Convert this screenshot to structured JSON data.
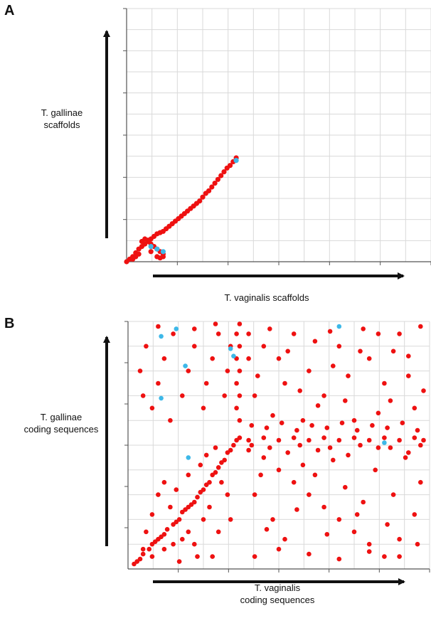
{
  "panels": {
    "a": {
      "letter": "A",
      "ylabel": "T. gallinae\nscaffolds",
      "xlabel": "T. vaginalis scaffolds"
    },
    "b": {
      "letter": "B",
      "ylabel": "T. gallinae\ncoding sequences",
      "xlabel": "T. vaginalis\ncoding sequences"
    }
  },
  "colors": {
    "points": "#ee1111",
    "highlight": "#3db8e8",
    "grid": "#d9d9d9",
    "axis": "#111111"
  },
  "chart_data": [
    {
      "type": "scatter",
      "title": "",
      "xlabel": "T. vaginalis scaffolds",
      "ylabel": "T. gallinae scaffolds",
      "xlim": [
        0,
        1
      ],
      "ylim": [
        0,
        1
      ],
      "grid": true,
      "series": [
        {
          "points": [
            [
              0.0,
              0.0
            ],
            [
              0.01,
              0.01
            ],
            [
              0.02,
              0.02
            ],
            [
              0.03,
              0.035
            ],
            [
              0.04,
              0.05
            ],
            [
              0.05,
              0.06
            ],
            [
              0.06,
              0.07
            ],
            [
              0.07,
              0.08
            ],
            [
              0.08,
              0.09
            ],
            [
              0.09,
              0.1
            ],
            [
              0.1,
              0.11
            ],
            [
              0.11,
              0.115
            ],
            [
              0.12,
              0.12
            ],
            [
              0.13,
              0.13
            ],
            [
              0.14,
              0.14
            ],
            [
              0.15,
              0.15
            ],
            [
              0.16,
              0.16
            ],
            [
              0.17,
              0.17
            ],
            [
              0.18,
              0.18
            ],
            [
              0.19,
              0.19
            ],
            [
              0.2,
              0.2
            ],
            [
              0.21,
              0.21
            ],
            [
              0.22,
              0.22
            ],
            [
              0.23,
              0.23
            ],
            [
              0.24,
              0.24
            ],
            [
              0.25,
              0.255
            ],
            [
              0.26,
              0.27
            ],
            [
              0.27,
              0.28
            ],
            [
              0.28,
              0.295
            ],
            [
              0.29,
              0.31
            ],
            [
              0.3,
              0.325
            ],
            [
              0.31,
              0.34
            ],
            [
              0.32,
              0.355
            ],
            [
              0.33,
              0.37
            ],
            [
              0.34,
              0.38
            ],
            [
              0.35,
              0.395
            ],
            [
              0.36,
              0.41
            ],
            [
              0.05,
              0.08
            ],
            [
              0.06,
              0.09
            ],
            [
              0.07,
              0.085
            ],
            [
              0.08,
              0.07
            ],
            [
              0.09,
              0.06
            ],
            [
              0.1,
              0.05
            ],
            [
              0.11,
              0.04
            ],
            [
              0.12,
              0.03
            ],
            [
              0.12,
              0.02
            ],
            [
              0.11,
              0.015
            ],
            [
              0.03,
              0.02
            ],
            [
              0.04,
              0.03
            ],
            [
              0.02,
              0.01
            ],
            [
              0.08,
              0.04
            ],
            [
              0.1,
              0.02
            ]
          ]
        },
        {
          "points": [
            [
              0.36,
              0.4
            ],
            [
              0.08,
              0.06
            ],
            [
              0.1,
              0.05
            ],
            [
              0.12,
              0.04
            ]
          ]
        }
      ]
    },
    {
      "type": "scatter",
      "title": "",
      "xlabel": "T. vaginalis coding sequences",
      "ylabel": "T. gallinae coding sequences",
      "xlim": [
        0,
        1
      ],
      "ylim": [
        0,
        1
      ],
      "grid": true,
      "series": [
        {
          "points": [
            [
              0.02,
              0.02
            ],
            [
              0.04,
              0.04
            ],
            [
              0.05,
              0.06
            ],
            [
              0.07,
              0.08
            ],
            [
              0.08,
              0.1
            ],
            [
              0.1,
              0.12
            ],
            [
              0.12,
              0.14
            ],
            [
              0.13,
              0.16
            ],
            [
              0.15,
              0.18
            ],
            [
              0.17,
              0.2
            ],
            [
              0.18,
              0.23
            ],
            [
              0.2,
              0.25
            ],
            [
              0.22,
              0.27
            ],
            [
              0.23,
              0.29
            ],
            [
              0.25,
              0.32
            ],
            [
              0.27,
              0.35
            ],
            [
              0.28,
              0.38
            ],
            [
              0.3,
              0.41
            ],
            [
              0.32,
              0.44
            ],
            [
              0.33,
              0.47
            ],
            [
              0.35,
              0.5
            ],
            [
              0.36,
              0.52
            ],
            [
              0.37,
              0.53
            ],
            [
              0.05,
              0.08
            ],
            [
              0.06,
              0.15
            ],
            [
              0.08,
              0.22
            ],
            [
              0.1,
              0.3
            ],
            [
              0.12,
              0.35
            ],
            [
              0.14,
              0.25
            ],
            [
              0.16,
              0.32
            ],
            [
              0.2,
              0.38
            ],
            [
              0.24,
              0.42
            ],
            [
              0.26,
              0.46
            ],
            [
              0.29,
              0.49
            ],
            [
              0.31,
              0.35
            ],
            [
              0.33,
              0.3
            ],
            [
              0.15,
              0.1
            ],
            [
              0.2,
              0.15
            ],
            [
              0.25,
              0.2
            ],
            [
              0.4,
              0.52
            ],
            [
              0.45,
              0.53
            ],
            [
              0.5,
              0.52
            ],
            [
              0.55,
              0.53
            ],
            [
              0.6,
              0.52
            ],
            [
              0.65,
              0.53
            ],
            [
              0.7,
              0.52
            ],
            [
              0.75,
              0.53
            ],
            [
              0.8,
              0.52
            ],
            [
              0.85,
              0.53
            ],
            [
              0.9,
              0.52
            ],
            [
              0.95,
              0.53
            ],
            [
              0.98,
              0.52
            ],
            [
              0.37,
              0.6
            ],
            [
              0.36,
              0.65
            ],
            [
              0.37,
              0.7
            ],
            [
              0.36,
              0.75
            ],
            [
              0.37,
              0.8
            ],
            [
              0.36,
              0.85
            ],
            [
              0.37,
              0.9
            ],
            [
              0.36,
              0.95
            ],
            [
              0.37,
              0.99
            ],
            [
              0.34,
              0.9
            ],
            [
              0.33,
              0.8
            ],
            [
              0.32,
              0.7
            ],
            [
              0.3,
              0.95
            ],
            [
              0.28,
              0.85
            ],
            [
              0.26,
              0.75
            ],
            [
              0.25,
              0.65
            ],
            [
              0.22,
              0.9
            ],
            [
              0.2,
              0.8
            ],
            [
              0.18,
              0.7
            ],
            [
              0.15,
              0.95
            ],
            [
              0.12,
              0.85
            ],
            [
              0.1,
              0.75
            ],
            [
              0.08,
              0.65
            ],
            [
              0.06,
              0.9
            ],
            [
              0.04,
              0.8
            ],
            [
              0.05,
              0.7
            ],
            [
              0.14,
              0.6
            ],
            [
              0.1,
              0.98
            ],
            [
              0.22,
              0.97
            ],
            [
              0.29,
              0.99
            ],
            [
              0.45,
              0.9
            ],
            [
              0.5,
              0.85
            ],
            [
              0.55,
              0.95
            ],
            [
              0.6,
              0.8
            ],
            [
              0.65,
              0.7
            ],
            [
              0.7,
              0.9
            ],
            [
              0.75,
              0.6
            ],
            [
              0.8,
              0.85
            ],
            [
              0.85,
              0.75
            ],
            [
              0.9,
              0.95
            ],
            [
              0.95,
              0.65
            ],
            [
              0.42,
              0.7
            ],
            [
              0.48,
              0.62
            ],
            [
              0.52,
              0.75
            ],
            [
              0.58,
              0.6
            ],
            [
              0.62,
              0.92
            ],
            [
              0.68,
              0.82
            ],
            [
              0.72,
              0.68
            ],
            [
              0.78,
              0.97
            ],
            [
              0.83,
              0.63
            ],
            [
              0.88,
              0.88
            ],
            [
              0.93,
              0.78
            ],
            [
              0.97,
              0.98
            ],
            [
              0.45,
              0.45
            ],
            [
              0.5,
              0.4
            ],
            [
              0.55,
              0.35
            ],
            [
              0.6,
              0.3
            ],
            [
              0.65,
              0.25
            ],
            [
              0.7,
              0.2
            ],
            [
              0.75,
              0.15
            ],
            [
              0.8,
              0.1
            ],
            [
              0.85,
              0.05
            ],
            [
              0.9,
              0.12
            ],
            [
              0.95,
              0.22
            ],
            [
              0.42,
              0.3
            ],
            [
              0.48,
              0.2
            ],
            [
              0.52,
              0.12
            ],
            [
              0.58,
              0.42
            ],
            [
              0.62,
              0.38
            ],
            [
              0.68,
              0.44
            ],
            [
              0.72,
              0.33
            ],
            [
              0.78,
              0.27
            ],
            [
              0.82,
              0.4
            ],
            [
              0.88,
              0.3
            ],
            [
              0.92,
              0.45
            ],
            [
              0.97,
              0.35
            ],
            [
              0.42,
              0.05
            ],
            [
              0.5,
              0.08
            ],
            [
              0.6,
              0.06
            ],
            [
              0.7,
              0.04
            ],
            [
              0.8,
              0.07
            ],
            [
              0.9,
              0.05
            ],
            [
              0.4,
              0.48
            ],
            [
              0.44,
              0.38
            ],
            [
              0.53,
              0.47
            ],
            [
              0.63,
              0.48
            ],
            [
              0.73,
              0.46
            ],
            [
              0.83,
              0.49
            ],
            [
              0.93,
              0.47
            ],
            [
              0.46,
              0.16
            ],
            [
              0.56,
              0.24
            ],
            [
              0.66,
              0.14
            ],
            [
              0.76,
              0.22
            ],
            [
              0.86,
              0.18
            ],
            [
              0.96,
              0.1
            ],
            [
              0.03,
              0.03
            ],
            [
              0.09,
              0.11
            ],
            [
              0.11,
              0.13
            ],
            [
              0.16,
              0.19
            ],
            [
              0.19,
              0.24
            ],
            [
              0.21,
              0.26
            ],
            [
              0.24,
              0.31
            ],
            [
              0.26,
              0.34
            ],
            [
              0.29,
              0.39
            ],
            [
              0.31,
              0.43
            ],
            [
              0.34,
              0.48
            ],
            [
              0.08,
              0.05
            ],
            [
              0.12,
              0.08
            ],
            [
              0.18,
              0.12
            ],
            [
              0.22,
              0.1
            ],
            [
              0.28,
              0.05
            ],
            [
              0.3,
              0.15
            ],
            [
              0.34,
              0.2
            ],
            [
              0.27,
              0.25
            ],
            [
              0.23,
              0.05
            ],
            [
              0.17,
              0.03
            ],
            [
              0.4,
              0.95
            ],
            [
              0.4,
              0.85
            ],
            [
              0.43,
              0.78
            ],
            [
              0.47,
              0.97
            ],
            [
              0.53,
              0.88
            ],
            [
              0.57,
              0.72
            ],
            [
              0.63,
              0.66
            ],
            [
              0.67,
              0.96
            ],
            [
              0.73,
              0.78
            ],
            [
              0.77,
              0.88
            ],
            [
              0.83,
              0.95
            ],
            [
              0.87,
              0.68
            ],
            [
              0.93,
              0.86
            ],
            [
              0.98,
              0.72
            ],
            [
              0.41,
              0.58
            ],
            [
              0.46,
              0.57
            ],
            [
              0.51,
              0.59
            ],
            [
              0.56,
              0.56
            ],
            [
              0.61,
              0.58
            ],
            [
              0.66,
              0.57
            ],
            [
              0.71,
              0.59
            ],
            [
              0.76,
              0.56
            ],
            [
              0.81,
              0.58
            ],
            [
              0.86,
              0.57
            ],
            [
              0.91,
              0.59
            ],
            [
              0.96,
              0.56
            ],
            [
              0.41,
              0.5
            ],
            [
              0.47,
              0.49
            ],
            [
              0.57,
              0.5
            ],
            [
              0.67,
              0.49
            ],
            [
              0.77,
              0.5
            ],
            [
              0.87,
              0.49
            ],
            [
              0.97,
              0.5
            ]
          ]
        },
        {
          "points": [
            [
              0.11,
              0.94
            ],
            [
              0.16,
              0.97
            ],
            [
              0.11,
              0.69
            ],
            [
              0.34,
              0.89
            ],
            [
              0.35,
              0.86
            ],
            [
              0.19,
              0.82
            ],
            [
              0.7,
              0.98
            ],
            [
              0.2,
              0.45
            ],
            [
              0.85,
              0.51
            ]
          ]
        }
      ]
    }
  ]
}
